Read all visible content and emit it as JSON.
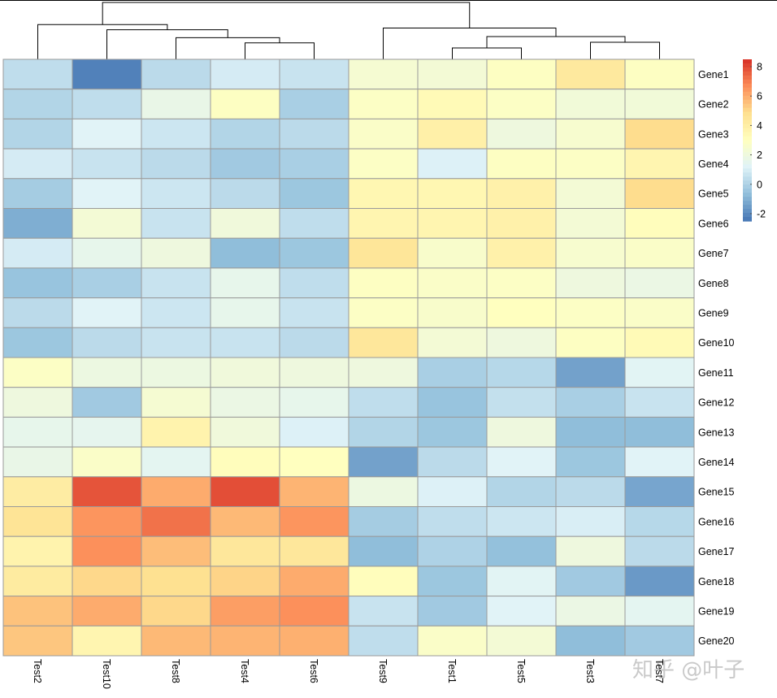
{
  "chart_data": {
    "type": "heatmap",
    "title": "",
    "rows": [
      "Gene1",
      "Gene2",
      "Gene3",
      "Gene4",
      "Gene5",
      "Gene6",
      "Gene7",
      "Gene8",
      "Gene9",
      "Gene10",
      "Gene11",
      "Gene12",
      "Gene13",
      "Gene14",
      "Gene15",
      "Gene16",
      "Gene17",
      "Gene18",
      "Gene19",
      "Gene20"
    ],
    "columns": [
      "Test2",
      "Test10",
      "Test8",
      "Test4",
      "Test6",
      "Test9",
      "Test1",
      "Test5",
      "Test3",
      "Test7"
    ],
    "values": [
      [
        0.4,
        -2.2,
        0.3,
        0.9,
        0.6,
        2.4,
        2.3,
        2.9,
        4.3,
        2.9
      ],
      [
        0.1,
        0.4,
        1.7,
        2.9,
        -0.1,
        2.8,
        3.3,
        2.8,
        2.2,
        2.2
      ],
      [
        0.1,
        1.2,
        0.7,
        0.1,
        0.3,
        2.7,
        3.9,
        2.0,
        2.5,
        4.9
      ],
      [
        0.9,
        0.6,
        0.3,
        -0.3,
        -0.1,
        2.8,
        1.1,
        2.9,
        2.8,
        3.6
      ],
      [
        -0.2,
        1.2,
        0.7,
        0.3,
        -0.4,
        3.5,
        3.5,
        3.8,
        2.3,
        4.9
      ],
      [
        -1.1,
        2.3,
        0.6,
        2.1,
        0.4,
        3.6,
        3.6,
        3.8,
        2.3,
        3.1
      ],
      [
        0.9,
        1.6,
        2.0,
        -0.7,
        -0.4,
        4.5,
        2.6,
        3.8,
        2.5,
        2.7
      ],
      [
        -0.5,
        -0.1,
        0.6,
        1.6,
        0.4,
        2.9,
        2.7,
        2.8,
        2.0,
        1.8
      ],
      [
        0.3,
        1.2,
        0.7,
        1.6,
        0.6,
        2.8,
        2.6,
        3.0,
        2.8,
        2.7
      ],
      [
        -0.4,
        0.3,
        0.6,
        0.6,
        0.3,
        4.4,
        2.3,
        2.0,
        2.9,
        3.3
      ],
      [
        2.8,
        1.9,
        1.9,
        2.1,
        2.0,
        2.0,
        -0.1,
        0.2,
        -1.4,
        1.3
      ],
      [
        2.0,
        -0.3,
        2.4,
        1.8,
        1.6,
        0.4,
        -0.5,
        0.5,
        -0.1,
        0.6
      ],
      [
        1.6,
        1.5,
        3.7,
        2.1,
        1.1,
        0.1,
        -0.4,
        2.0,
        -0.7,
        -0.7
      ],
      [
        1.7,
        2.7,
        1.4,
        3.1,
        3.0,
        -1.4,
        0.3,
        1.2,
        -0.4,
        1.2
      ],
      [
        4.1,
        7.8,
        6.0,
        7.9,
        5.8,
        1.9,
        1.1,
        0.1,
        0.3,
        -1.3
      ],
      [
        4.6,
        6.5,
        7.2,
        5.7,
        6.5,
        -0.2,
        0.4,
        0.7,
        1.0,
        0.2
      ],
      [
        3.7,
        6.6,
        5.6,
        4.4,
        4.4,
        -0.7,
        0.0,
        -0.6,
        2.0,
        0.3
      ],
      [
        4.2,
        5.0,
        4.8,
        5.1,
        6.0,
        3.1,
        -0.4,
        1.3,
        -0.3,
        -1.6
      ],
      [
        5.5,
        6.0,
        5.0,
        6.3,
        6.6,
        0.6,
        -0.3,
        1.2,
        1.8,
        1.4
      ],
      [
        5.4,
        3.6,
        5.7,
        5.8,
        5.9,
        0.4,
        2.7,
        2.3,
        -0.7,
        -0.3
      ]
    ],
    "color_scale": {
      "min": -2.5,
      "max": 8.5,
      "stops": [
        "#4575B4",
        "#91BFDB",
        "#E0F3F8",
        "#FFFFBF",
        "#FEE090",
        "#FC8D59",
        "#D73027"
      ],
      "legend_ticks": [
        8,
        6,
        4,
        2,
        0,
        -2
      ]
    },
    "column_dendrogram": {
      "merges": [
        [
          "Test1",
          "Test5",
          0.2
        ],
        [
          "Test3",
          "Test7",
          0.3
        ],
        [
          "Test4",
          "Test6",
          0.29
        ],
        [
          "Test8",
          "Test4+Test6",
          0.38
        ],
        [
          "Test10",
          "Test8+Test4+Test6",
          0.52
        ],
        [
          "Test1+Test5",
          "Test3+Test7",
          0.4
        ],
        [
          "Test9",
          "Test1+Test5+Test3+Test7",
          0.55
        ],
        [
          "Test2",
          "Test10+Test8+Test4+Test6",
          0.61
        ],
        [
          "Test2..Test6",
          "Test9..Test7",
          1.0
        ]
      ]
    }
  },
  "watermark": "知乎 @叶子"
}
